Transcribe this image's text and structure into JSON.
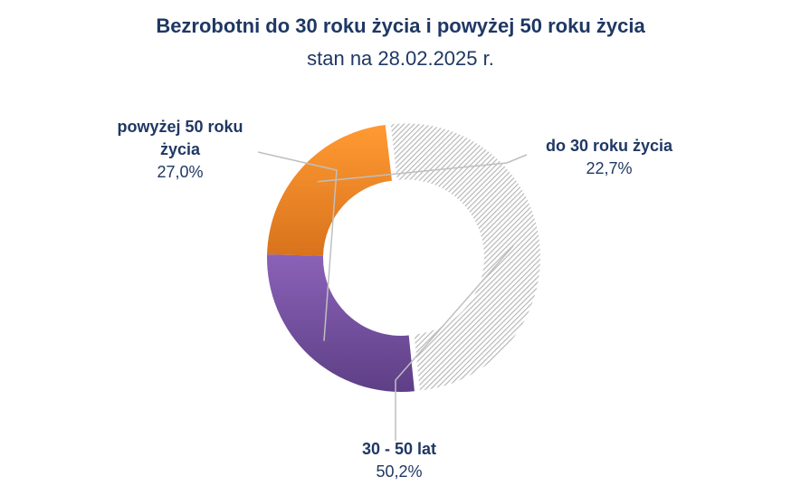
{
  "chart_data": {
    "type": "pie",
    "title": "Bezrobotni do 30 roku życia i powyżej 50 roku życia",
    "subtitle": "stan na 28.02.2025 r.",
    "categories": [
      "do 30 roku życia",
      "30 - 50 lat",
      "powyżej 50 roku życia"
    ],
    "values": [
      22.7,
      50.2,
      27.0
    ],
    "value_labels": [
      "22,7%",
      "50,2%",
      "27,0%"
    ],
    "label_lines": [
      [
        "do 30 roku życia"
      ],
      [
        "30 - 50 lat"
      ],
      [
        "powyżej 50 roku",
        "życia"
      ]
    ],
    "colors": [
      "#f58a22",
      "#c8c8c8",
      "#7a55a5"
    ],
    "style": "donut",
    "legend": "none"
  }
}
